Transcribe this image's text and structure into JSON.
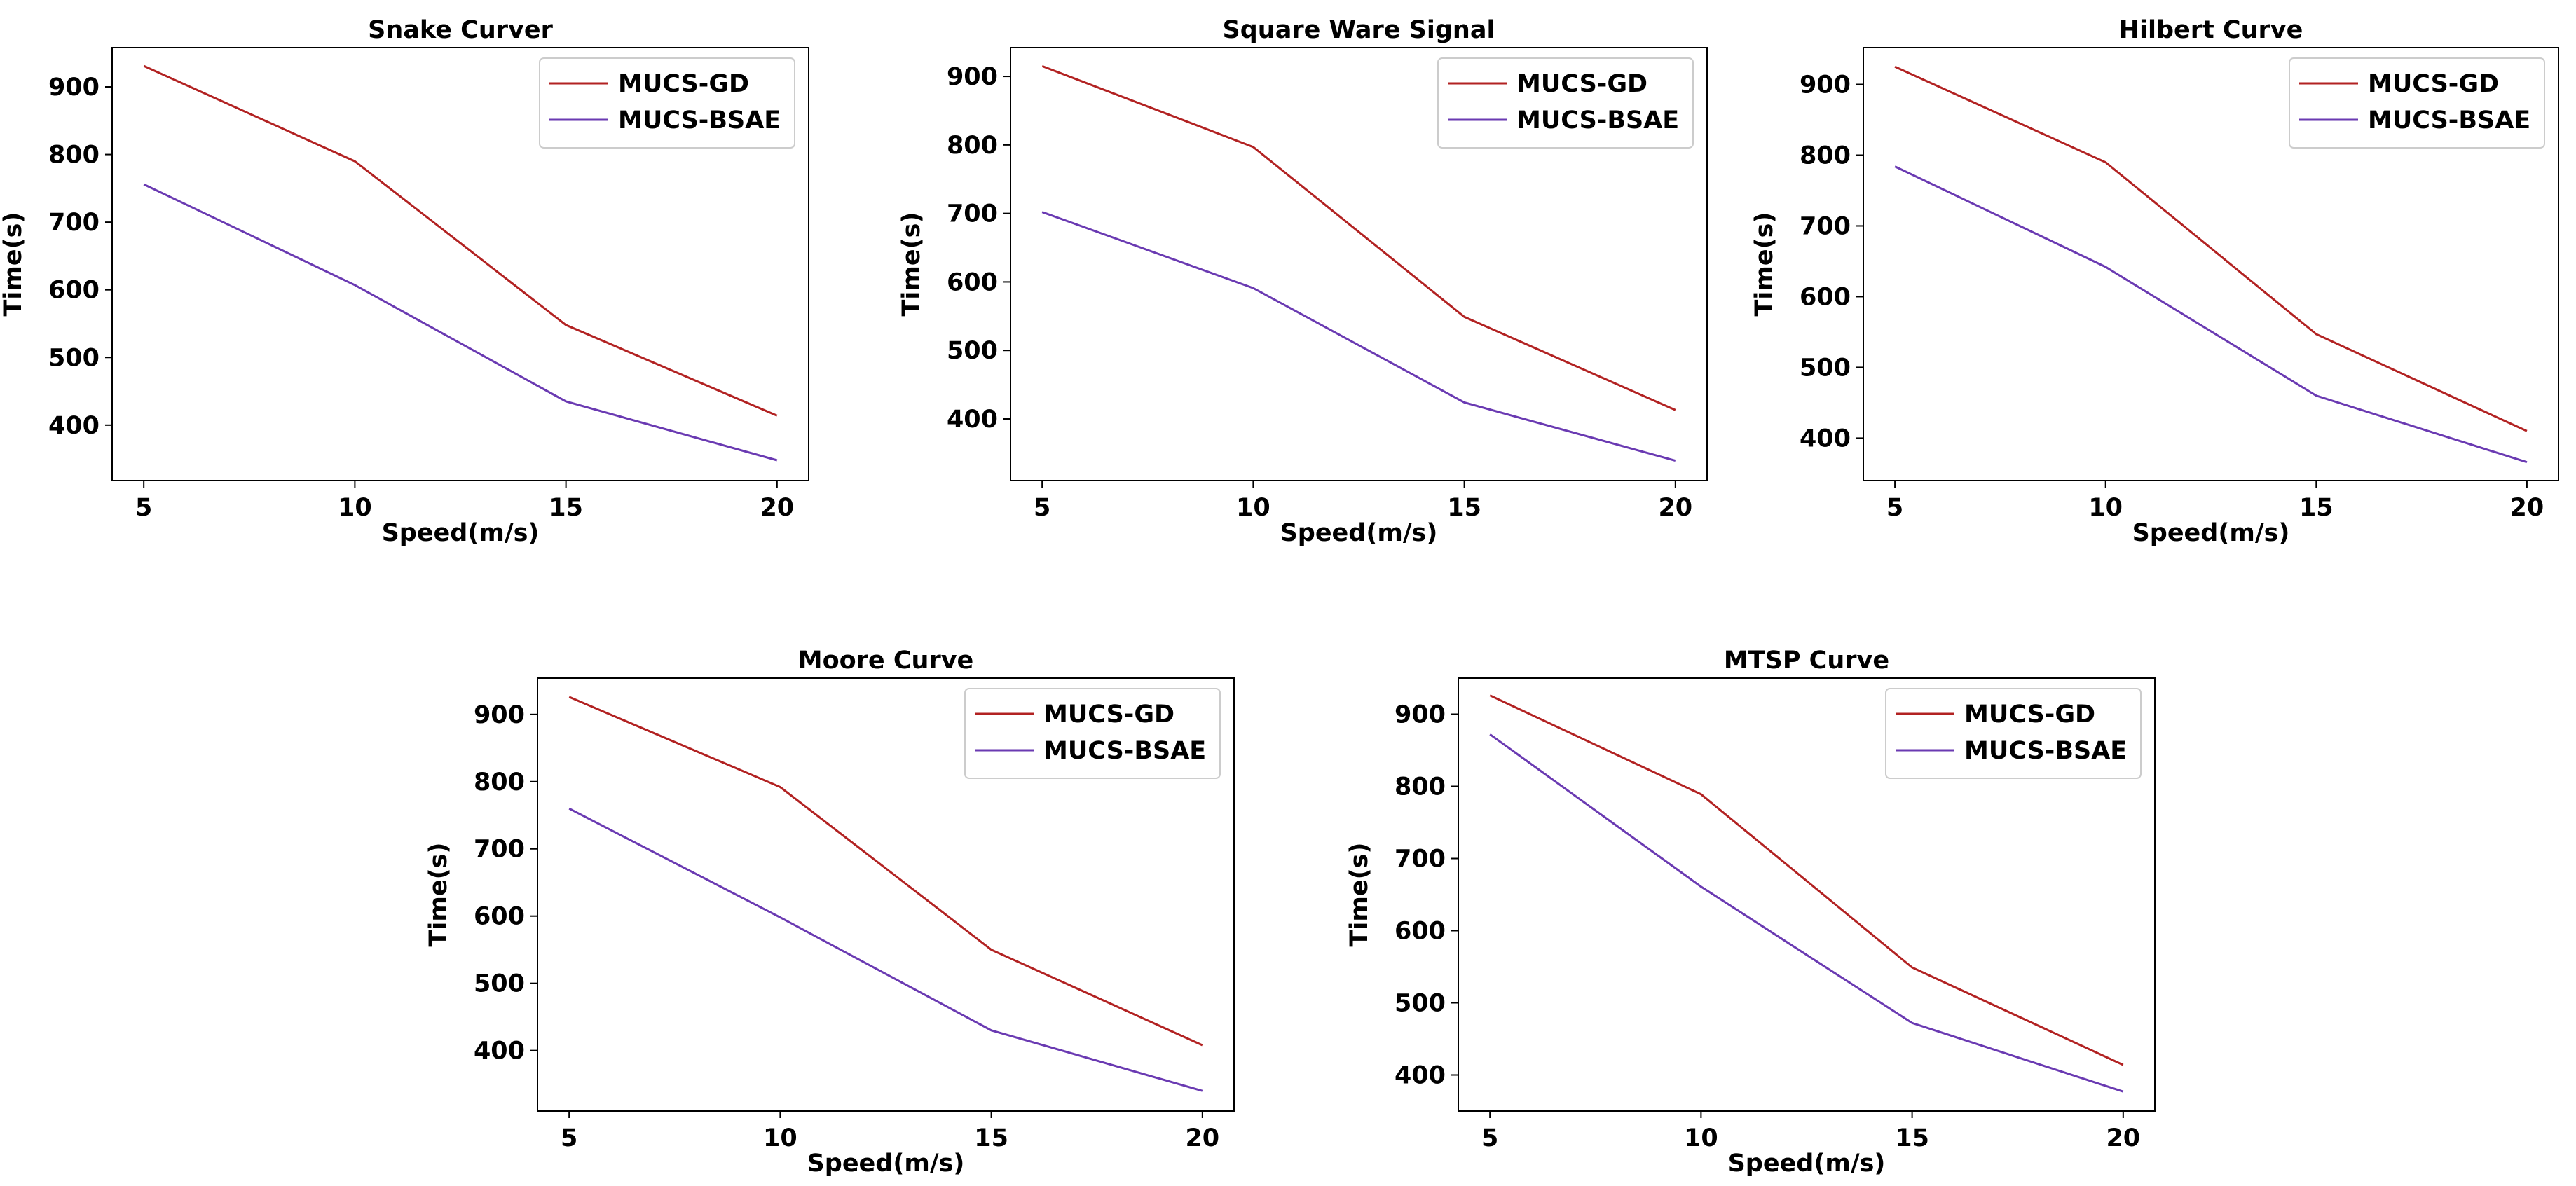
{
  "colors": {
    "gd": "#b22222",
    "bsae": "#6a3ab2"
  },
  "chart_data": [
    {
      "type": "line",
      "title": "Snake Curver",
      "xlabel": "Speed(m/s)",
      "ylabel": "Time(s)",
      "x": [
        5,
        10,
        15,
        20
      ],
      "xticks": [
        5,
        10,
        15,
        20
      ],
      "yticks": [
        400,
        500,
        600,
        700,
        800,
        900
      ],
      "xlim": [
        4.25,
        20.75
      ],
      "ylim": [
        318,
        958
      ],
      "legend": "top-right",
      "series": [
        {
          "name": "MUCS-GD",
          "values": [
            931,
            790,
            548,
            414
          ]
        },
        {
          "name": "MUCS-BSAE",
          "values": [
            756,
            607,
            435,
            348
          ]
        }
      ]
    },
    {
      "type": "line",
      "title": "Square Ware Signal",
      "xlabel": "Speed(m/s)",
      "ylabel": "Time(s)",
      "x": [
        5,
        10,
        15,
        20
      ],
      "xticks": [
        5,
        10,
        15,
        20
      ],
      "yticks": [
        400,
        500,
        600,
        700,
        800,
        900
      ],
      "xlim": [
        4.25,
        20.75
      ],
      "ylim": [
        310,
        942
      ],
      "legend": "top-right",
      "series": [
        {
          "name": "MUCS-GD",
          "values": [
            915,
            797,
            549,
            413
          ]
        },
        {
          "name": "MUCS-BSAE",
          "values": [
            702,
            591,
            424,
            339
          ]
        }
      ]
    },
    {
      "type": "line",
      "title": "Hilbert Curve",
      "xlabel": "Speed(m/s)",
      "ylabel": "Time(s)",
      "x": [
        5,
        10,
        15,
        20
      ],
      "xticks": [
        5,
        10,
        15,
        20
      ],
      "yticks": [
        400,
        500,
        600,
        700,
        800,
        900
      ],
      "xlim": [
        4.25,
        20.75
      ],
      "ylim": [
        340,
        952
      ],
      "legend": "top-right",
      "series": [
        {
          "name": "MUCS-GD",
          "values": [
            925,
            790,
            547,
            410
          ]
        },
        {
          "name": "MUCS-BSAE",
          "values": [
            784,
            642,
            460,
            366
          ]
        }
      ]
    },
    {
      "type": "line",
      "title": "Moore Curve",
      "xlabel": "Speed(m/s)",
      "ylabel": "Time(s)",
      "x": [
        5,
        10,
        15,
        20
      ],
      "xticks": [
        5,
        10,
        15,
        20
      ],
      "yticks": [
        400,
        500,
        600,
        700,
        800,
        900
      ],
      "xlim": [
        4.25,
        20.75
      ],
      "ylim": [
        310,
        954
      ],
      "legend": "top-right",
      "series": [
        {
          "name": "MUCS-GD",
          "values": [
            926,
            792,
            550,
            408
          ]
        },
        {
          "name": "MUCS-BSAE",
          "values": [
            760,
            598,
            430,
            340
          ]
        }
      ]
    },
    {
      "type": "line",
      "title": "MTSP Curve",
      "xlabel": "Speed(m/s)",
      "ylabel": "Time(s)",
      "x": [
        5,
        10,
        15,
        20
      ],
      "xticks": [
        5,
        10,
        15,
        20
      ],
      "yticks": [
        400,
        500,
        600,
        700,
        800,
        900
      ],
      "xlim": [
        4.25,
        20.75
      ],
      "ylim": [
        350,
        950
      ],
      "legend": "top-right",
      "series": [
        {
          "name": "MUCS-GD",
          "values": [
            926,
            789,
            549,
            414
          ]
        },
        {
          "name": "MUCS-BSAE",
          "values": [
            872,
            661,
            472,
            377
          ]
        }
      ]
    }
  ]
}
